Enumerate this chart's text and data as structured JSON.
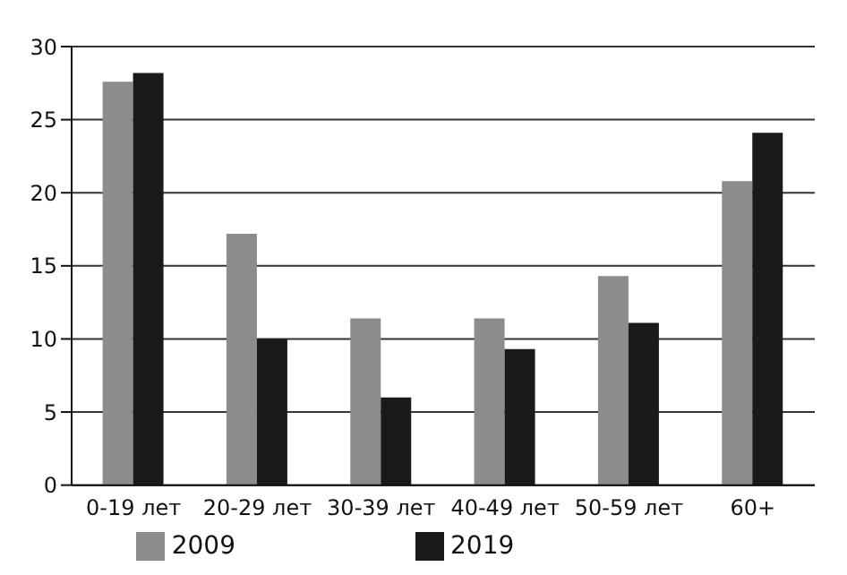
{
  "chart_data": {
    "type": "bar",
    "categories": [
      "0-19 лет",
      "20-29 лет",
      "30-39 лет",
      "40-49 лет",
      "50-59 лет",
      "60+"
    ],
    "series": [
      {
        "name": "2009",
        "color": "#8c8c8c",
        "values": [
          27.6,
          17.2,
          11.4,
          11.4,
          14.3,
          20.8
        ]
      },
      {
        "name": "2019",
        "color": "#1a1a1a",
        "values": [
          28.2,
          10.0,
          6.0,
          9.3,
          11.1,
          24.1
        ]
      }
    ],
    "ylim": [
      0,
      30
    ],
    "yticks": [
      0,
      5,
      10,
      15,
      20,
      25,
      30
    ],
    "grid": "y",
    "legend": "bottom"
  }
}
